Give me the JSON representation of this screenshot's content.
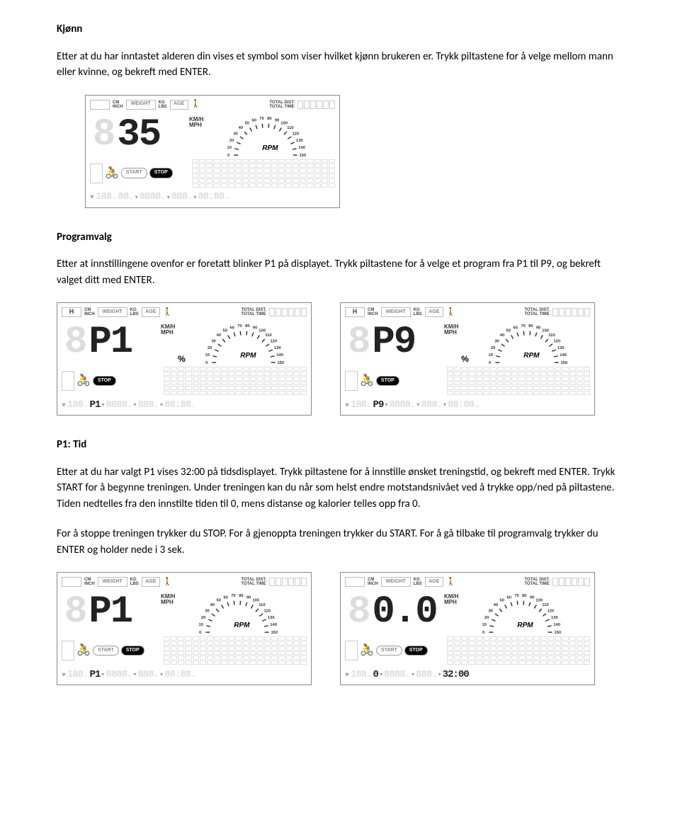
{
  "sections": {
    "kjonn": {
      "heading": "Kjønn",
      "body": "Etter at du har inntastet alderen din vises et symbol som viser hvilket kjønn brukeren er. Trykk piltastene for å velge mellom mann eller kvinne, og bekreft med ENTER."
    },
    "programvalg": {
      "heading": "Programvalg",
      "body": "Etter at innstillingene ovenfor er foretatt blinker P1 på displayet.  Trykk piltastene for å velge et program fra P1 til P9, og bekreft valget ditt med ENTER."
    },
    "p1tid": {
      "heading": "P1: Tid",
      "body1": " Etter at du har valgt P1 vises 32:00 på tidsdisplayet. Trykk piltastene for å innstille ønsket treningstid, og bekreft med ENTER. Trykk START for å begynne treningen. Under treningen kan du når som helst endre motstandsnivået ved å trykke opp/ned på piltastene. Tiden nedtelles fra den innstilte tiden til 0, mens distanse og kalorier telles opp fra 0.",
      "body2": "For å stoppe treningen trykker du STOP. For å gjenoppta treningen trykker du START. For å gå tilbake til programvalg trykker du ENTER og holder nede i 3 sek."
    }
  },
  "lcd_labels": {
    "cm": "CM",
    "inch": "INCH",
    "weight": "WEIGHT",
    "kg": "KG",
    "lbs": "LBS",
    "age": "AGE",
    "total_dist": "TOTAL DIST.",
    "total_time": "TOTAL TIME",
    "kmh": "KM/H",
    "mph": "MPH",
    "rpm": "RPM",
    "start": "START",
    "stop": "STOP",
    "H": "H"
  },
  "rpm_arc": {
    "ticks": [
      "0",
      "10",
      "20",
      "30",
      "40",
      "50",
      "60",
      "70",
      "80",
      "90",
      "100",
      "110",
      "120",
      "130",
      "140",
      "150"
    ]
  },
  "panels": {
    "kjonn_panel": {
      "big_value": "35",
      "show_start": true,
      "show_h": false,
      "show_pct": false,
      "bottom_program": "",
      "bottom_right": ""
    },
    "prog_p1": {
      "big_value": "P1",
      "show_start": false,
      "show_h": true,
      "show_pct": true,
      "bottom_program": "P1",
      "bottom_right": ""
    },
    "prog_p9": {
      "big_value": "P9",
      "show_start": false,
      "show_h": true,
      "show_pct": true,
      "bottom_program": "P9",
      "bottom_right": ""
    },
    "tid_p1": {
      "big_value": "P1",
      "show_start": true,
      "show_h": false,
      "show_pct": false,
      "bottom_program": "P1",
      "bottom_right": ""
    },
    "tid_00": {
      "big_value": "0.0",
      "show_start": true,
      "show_h": false,
      "show_pct": false,
      "bottom_program": "0",
      "bottom_right": "32:00"
    }
  },
  "colors": {
    "text": "#000000",
    "border": "#888888",
    "ghost": "#dddddd",
    "grid": "#e0e0e0"
  }
}
